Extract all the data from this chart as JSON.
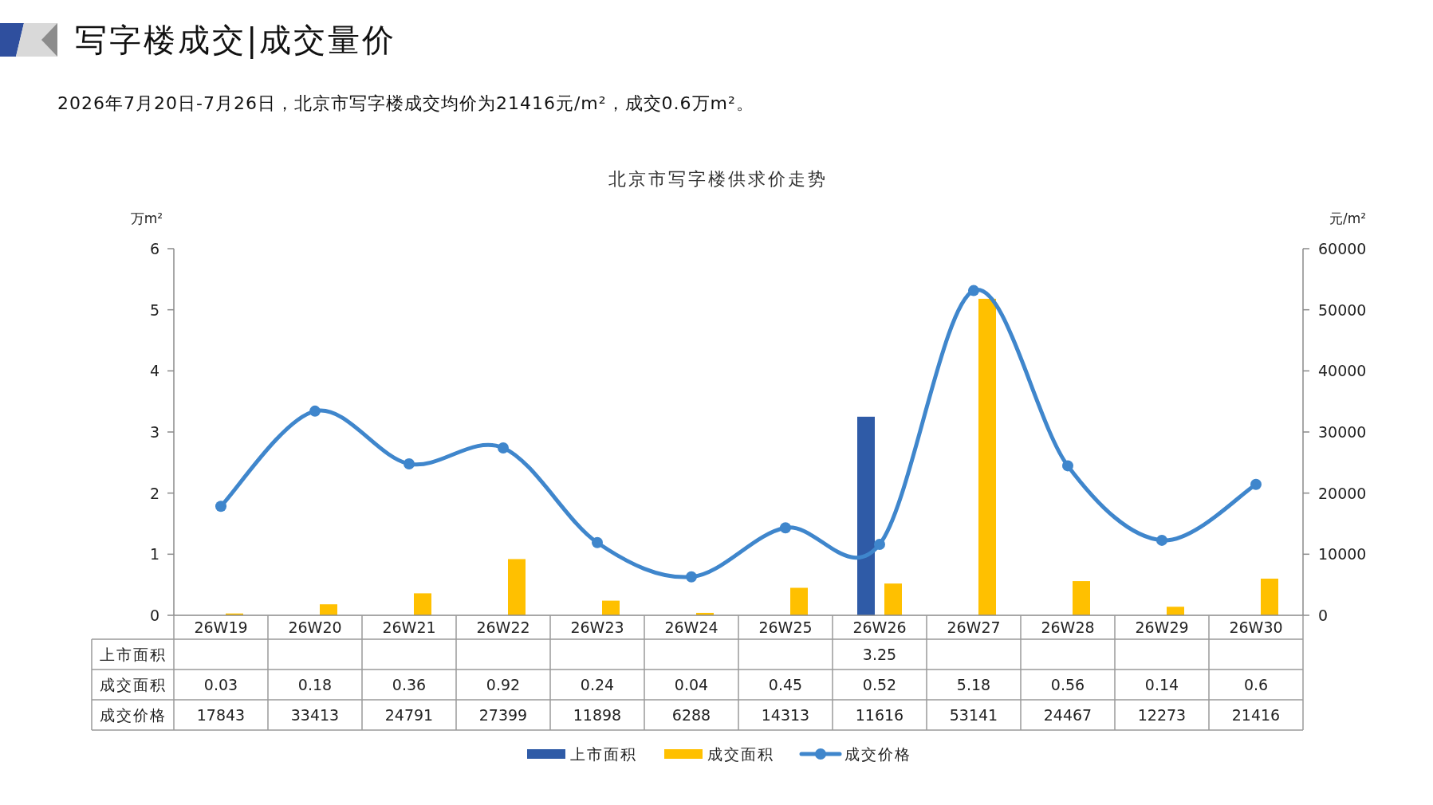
{
  "chart_data": {
    "type": "bar",
    "title": "北京市写字楼供求价走势",
    "annotations": [
      "写字楼成交|成交量价",
      "2026年7月20日-7月26日，北京市写字楼成交均价为21416元/m²，成交0.6万m²。"
    ],
    "ylabel": "万m²",
    "y2label": "元/m²",
    "categories": [
      "26W19",
      "26W20",
      "26W21",
      "26W22",
      "26W23",
      "26W24",
      "26W25",
      "26W26",
      "26W27",
      "26W28",
      "26W29",
      "26W30"
    ],
    "series": [
      {
        "name": "上市面积",
        "color": "#2f5ba7",
        "values": [
          null,
          null,
          null,
          null,
          null,
          null,
          null,
          3.25,
          null,
          null,
          null,
          null
        ]
      },
      {
        "name": "成交面积",
        "color": "#ffc000",
        "values": [
          0.03,
          0.18,
          0.36,
          0.92,
          0.24,
          0.04,
          0.45,
          0.52,
          5.18,
          0.56,
          0.14,
          0.6
        ]
      },
      {
        "name": "成交价格",
        "type": "line",
        "axis": "y2",
        "marker": "circle",
        "color": "#3f86cc",
        "values": [
          17843,
          33413,
          24791,
          27399,
          11898,
          6288,
          14313,
          11616,
          53141,
          24467,
          12273,
          21416
        ]
      }
    ],
    "ylim": [
      0,
      6
    ],
    "yticks": [
      0,
      1,
      2,
      3,
      4,
      5,
      6
    ],
    "y2lim": [
      0,
      60000
    ],
    "y2ticks": [
      0,
      10000,
      20000,
      30000,
      40000,
      50000,
      60000
    ],
    "legend": "bottom",
    "data_labels": true
  }
}
